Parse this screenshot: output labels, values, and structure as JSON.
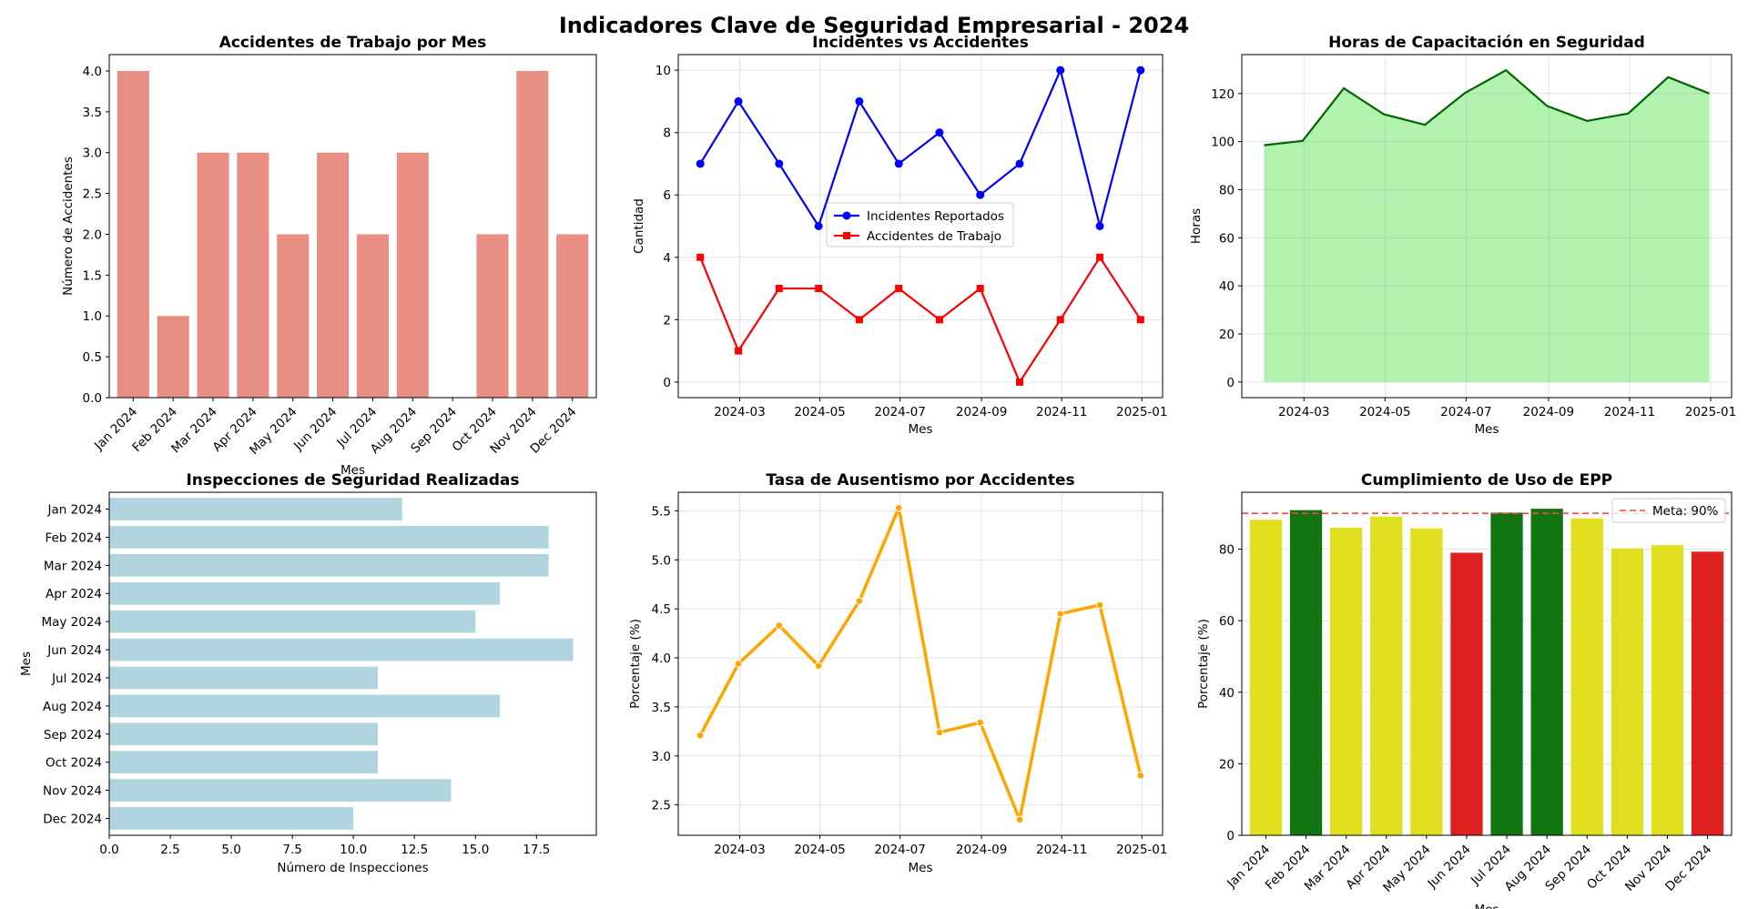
{
  "title": "Indicadores Clave de Seguridad Empresarial - 2024",
  "chart_data": [
    {
      "id": "accidentes",
      "type": "bar",
      "title": "Accidentes de Trabajo por Mes",
      "xlabel": "Mes",
      "ylabel": "Número de Accidentes",
      "categories": [
        "Jan 2024",
        "Feb 2024",
        "Mar 2024",
        "Apr 2024",
        "May 2024",
        "Jun 2024",
        "Jul 2024",
        "Aug 2024",
        "Sep 2024",
        "Oct 2024",
        "Nov 2024",
        "Dec 2024"
      ],
      "values": [
        4,
        1,
        3,
        3,
        2,
        3,
        2,
        3,
        0,
        2,
        4,
        2
      ],
      "ylim": [
        0,
        4.2
      ],
      "yticks": [
        "0.0",
        "0.5",
        "1.0",
        "1.5",
        "2.0",
        "2.5",
        "3.0",
        "3.5",
        "4.0"
      ],
      "color": "#e88e83",
      "grid": false
    },
    {
      "id": "incidentes",
      "type": "line",
      "title": "Incidentes vs Accidentes",
      "xlabel": "Mes",
      "ylabel": "Cantidad",
      "x": [
        "2024-01-31",
        "2024-02-29",
        "2024-03-31",
        "2024-04-30",
        "2024-05-31",
        "2024-06-30",
        "2024-07-31",
        "2024-08-31",
        "2024-09-30",
        "2024-10-31",
        "2024-11-30",
        "2024-12-31"
      ],
      "xticks": [
        "2024-03",
        "2024-05",
        "2024-07",
        "2024-09",
        "2024-11",
        "2025-01"
      ],
      "series": [
        {
          "name": "Incidentes Reportados",
          "values": [
            7,
            9,
            7,
            5,
            9,
            7,
            8,
            6,
            7,
            10,
            5,
            10
          ],
          "color": "#0000ff",
          "marker": "circle"
        },
        {
          "name": "Accidentes de Trabajo",
          "values": [
            4,
            1,
            3,
            3,
            2,
            3,
            2,
            3,
            0,
            2,
            4,
            2
          ],
          "color": "#ff0000",
          "marker": "square"
        }
      ],
      "yticks": [
        "0",
        "2",
        "4",
        "6",
        "8",
        "10"
      ],
      "legend": "center",
      "grid": true
    },
    {
      "id": "capacitacion",
      "type": "area",
      "title": "Horas de Capacitación en Seguridad",
      "xlabel": "Mes",
      "ylabel": "Horas",
      "x": [
        "2024-01-31",
        "2024-02-29",
        "2024-03-31",
        "2024-04-30",
        "2024-05-31",
        "2024-06-30",
        "2024-07-31",
        "2024-08-31",
        "2024-09-30",
        "2024-10-31",
        "2024-11-30",
        "2024-12-31"
      ],
      "xticks": [
        "2024-03",
        "2024-05",
        "2024-07",
        "2024-09",
        "2024-11",
        "2025-01"
      ],
      "values": [
        98.5,
        100.3,
        122.2,
        111.4,
        107.0,
        120.2,
        129.7,
        114.8,
        108.6,
        111.7,
        126.8,
        120.0
      ],
      "yticks": [
        "0",
        "20",
        "40",
        "60",
        "80",
        "100",
        "120"
      ],
      "line_color": "#006400",
      "fill_color": "#b0f2ae",
      "grid": true
    },
    {
      "id": "inspecciones",
      "type": "bar",
      "orientation": "horizontal",
      "title": "Inspecciones de Seguridad Realizadas",
      "xlabel": "Número de Inspecciones",
      "ylabel": "Mes",
      "categories": [
        "Jan 2024",
        "Feb 2024",
        "Mar 2024",
        "Apr 2024",
        "May 2024",
        "Jun 2024",
        "Jul 2024",
        "Aug 2024",
        "Sep 2024",
        "Oct 2024",
        "Nov 2024",
        "Dec 2024"
      ],
      "values": [
        12,
        18,
        18,
        16,
        15,
        19,
        11,
        16,
        11,
        11,
        14,
        10
      ],
      "xticks": [
        "0.0",
        "2.5",
        "5.0",
        "7.5",
        "10.0",
        "12.5",
        "15.0",
        "17.5"
      ],
      "color": "#b1d5df",
      "grid": false
    },
    {
      "id": "ausentismo",
      "type": "line",
      "title": "Tasa de Ausentismo por Accidentes",
      "xlabel": "Mes",
      "ylabel": "Porcentaje (%)",
      "x": [
        "2024-01-31",
        "2024-02-29",
        "2024-03-31",
        "2024-04-30",
        "2024-05-31",
        "2024-06-30",
        "2024-07-31",
        "2024-08-31",
        "2024-09-30",
        "2024-10-31",
        "2024-11-30",
        "2024-12-31"
      ],
      "xticks": [
        "2024-03",
        "2024-05",
        "2024-07",
        "2024-09",
        "2024-11",
        "2025-01"
      ],
      "values": [
        3.21,
        3.94,
        4.33,
        3.92,
        4.58,
        5.53,
        3.24,
        3.34,
        2.35,
        4.45,
        4.54,
        2.8
      ],
      "yticks": [
        "2.5",
        "3.0",
        "3.5",
        "4.0",
        "4.5",
        "5.0",
        "5.5"
      ],
      "color": "#ffa500",
      "grid": true
    },
    {
      "id": "epp",
      "type": "bar",
      "title": "Cumplimiento de Uso de EPP",
      "xlabel": "Mes",
      "ylabel": "Porcentaje (%)",
      "categories": [
        "Jan 2024",
        "Feb 2024",
        "Mar 2024",
        "Apr 2024",
        "May 2024",
        "Jun 2024",
        "Jul 2024",
        "Aug 2024",
        "Sep 2024",
        "Oct 2024",
        "Nov 2024",
        "Dec 2024"
      ],
      "values": [
        88.2,
        90.9,
        86.0,
        89.1,
        85.8,
        79.0,
        90.2,
        91.3,
        88.6,
        80.2,
        81.1,
        79.3
      ],
      "colors": [
        "#dfdf1f",
        "#117511",
        "#dfdf1f",
        "#dfdf1f",
        "#dfdf1f",
        "#dd2020",
        "#117511",
        "#117511",
        "#dfdf1f",
        "#dfdf1f",
        "#dfdf1f",
        "#dd2020"
      ],
      "target": {
        "label": "Meta: 90%",
        "value": 90,
        "color": "#ff4444"
      },
      "yticks": [
        "0",
        "20",
        "40",
        "60",
        "80"
      ],
      "legend": "top-right",
      "grid": true
    }
  ]
}
